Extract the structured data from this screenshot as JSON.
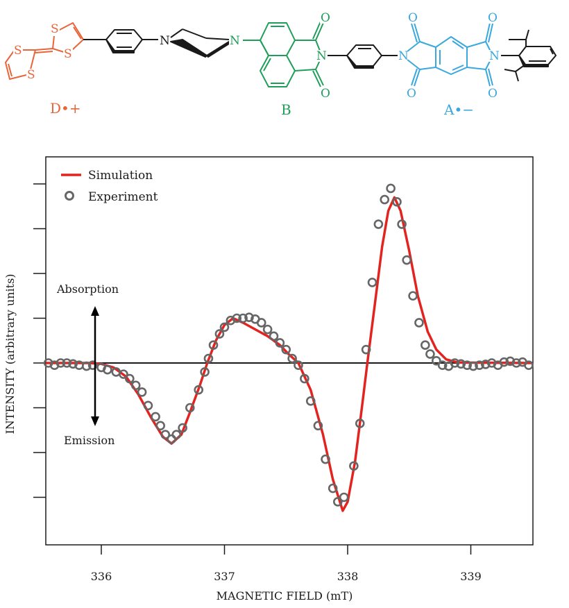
{
  "molecule": {
    "labels": {
      "donor": "D•+",
      "bridge": "B",
      "acceptor": "A•−"
    },
    "atom_labels": [
      "S",
      "S",
      "S",
      "S",
      "N",
      "N",
      "N",
      "O",
      "O",
      "N",
      "N",
      "O",
      "O",
      "O",
      "O",
      "N"
    ],
    "colors": {
      "donor": "#e8643a",
      "bridge": "#1f9e5a",
      "acceptor": "#3aa7dd",
      "linker": "#1a1a1a"
    }
  },
  "chart_data": {
    "type": "line",
    "xlabel": "MAGNETIC FIELD (mT)",
    "ylabel": "INTENSITY (arbitrary units)",
    "xlim": [
      335.55,
      339.5
    ],
    "ylim": [
      -4.1,
      4.65
    ],
    "x_ticks": [
      336,
      337,
      338,
      339
    ],
    "x_tick_labels": [
      "336",
      "337",
      "338",
      "339"
    ],
    "y_ticks": [
      -3,
      -2,
      -1,
      0,
      1,
      2,
      3,
      4
    ],
    "grid": false,
    "legend": {
      "position": "top-left",
      "entries": [
        "Simulation",
        "Experiment"
      ]
    },
    "annotations": {
      "up": "Absorption",
      "down": "Emission"
    },
    "colors": {
      "simulation": "#e3231f",
      "experiment": "#666666",
      "axis": "#1a1a1a"
    },
    "series": [
      {
        "name": "Simulation",
        "style": "line",
        "x": [
          335.55,
          335.9,
          336.0,
          336.1,
          336.2,
          336.3,
          336.4,
          336.5,
          336.57,
          336.65,
          336.72,
          336.8,
          336.86,
          336.93,
          337.0,
          337.07,
          337.15,
          337.25,
          337.35,
          337.45,
          337.52,
          337.6,
          337.7,
          337.8,
          337.88,
          337.96,
          338.0,
          338.06,
          338.12,
          338.16,
          338.22,
          338.28,
          338.33,
          338.38,
          338.43,
          338.5,
          338.57,
          338.65,
          338.72,
          338.8,
          338.9,
          339.5
        ],
        "y": [
          0,
          0,
          -0.02,
          -0.1,
          -0.3,
          -0.7,
          -1.2,
          -1.65,
          -1.8,
          -1.6,
          -1.1,
          -0.5,
          0,
          0.5,
          0.85,
          1.0,
          0.9,
          0.75,
          0.6,
          0.4,
          0.2,
          0,
          -0.6,
          -1.6,
          -2.6,
          -3.3,
          -3.1,
          -2.2,
          -0.9,
          0,
          1.3,
          2.6,
          3.4,
          3.7,
          3.4,
          2.5,
          1.5,
          0.7,
          0.3,
          0.08,
          0.01,
          0
        ]
      },
      {
        "name": "Experiment",
        "style": "markers",
        "x": [
          335.57,
          335.62,
          335.67,
          335.72,
          335.77,
          335.82,
          335.88,
          335.93,
          336.0,
          336.05,
          336.12,
          336.18,
          336.23,
          336.28,
          336.33,
          336.38,
          336.44,
          336.48,
          336.52,
          336.57,
          336.61,
          336.66,
          336.72,
          336.79,
          336.84,
          336.87,
          336.91,
          336.96,
          337.0,
          337.05,
          337.1,
          337.15,
          337.2,
          337.25,
          337.3,
          337.35,
          337.4,
          337.45,
          337.5,
          337.55,
          337.6,
          337.65,
          337.7,
          337.76,
          337.82,
          337.88,
          337.92,
          337.97,
          338.05,
          338.1,
          338.15,
          338.2,
          338.25,
          338.3,
          338.35,
          338.4,
          338.44,
          338.48,
          338.53,
          338.58,
          338.63,
          338.67,
          338.72,
          338.77,
          338.82,
          338.87,
          338.92,
          338.97,
          339.02,
          339.07,
          339.12,
          339.17,
          339.22,
          339.27,
          339.32,
          339.37,
          339.42,
          339.47
        ],
        "y": [
          0,
          -0.05,
          0,
          0,
          -0.02,
          -0.05,
          -0.07,
          -0.05,
          -0.1,
          -0.15,
          -0.2,
          -0.25,
          -0.35,
          -0.5,
          -0.65,
          -0.95,
          -1.2,
          -1.4,
          -1.6,
          -1.7,
          -1.6,
          -1.45,
          -1.0,
          -0.6,
          -0.2,
          0.1,
          0.4,
          0.65,
          0.8,
          0.95,
          1.0,
          1.0,
          1.02,
          0.98,
          0.9,
          0.75,
          0.6,
          0.45,
          0.3,
          0.1,
          -0.05,
          -0.35,
          -0.85,
          -1.4,
          -2.15,
          -2.8,
          -3.1,
          -3.0,
          -2.3,
          -1.35,
          0.3,
          1.8,
          3.1,
          3.65,
          3.9,
          3.6,
          3.1,
          2.3,
          1.5,
          0.9,
          0.4,
          0.2,
          0.05,
          -0.05,
          -0.07,
          0,
          -0.02,
          -0.05,
          -0.07,
          -0.05,
          -0.03,
          0,
          -0.05,
          0.02,
          0.04,
          0,
          0.02,
          -0.05
        ]
      }
    ]
  }
}
